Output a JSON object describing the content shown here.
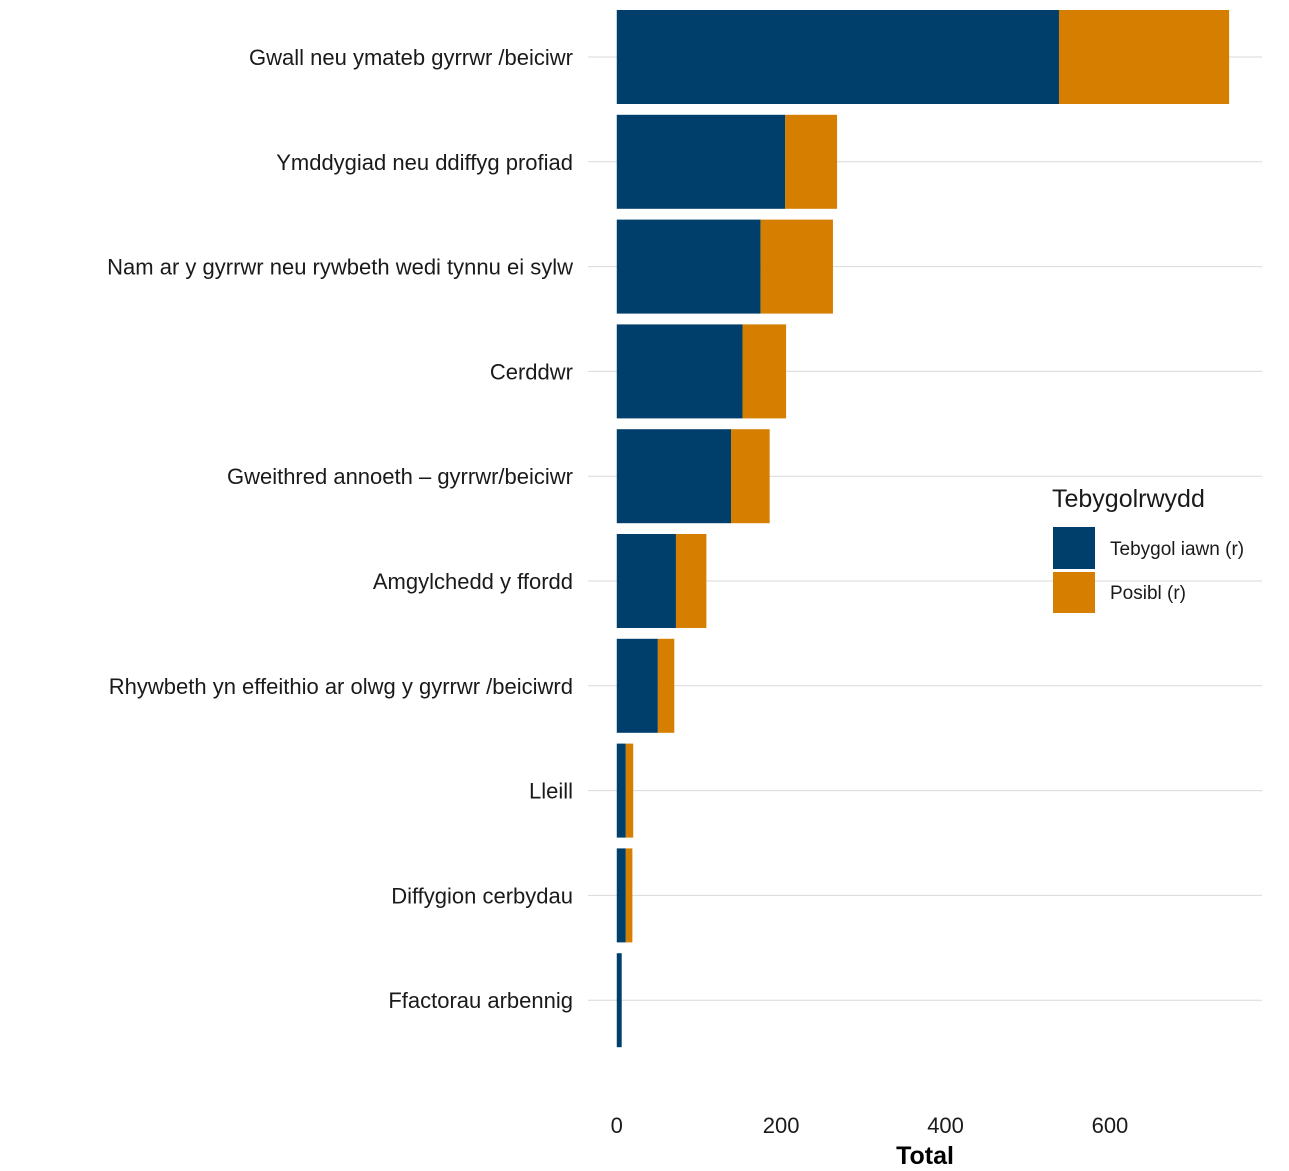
{
  "chart_data": {
    "type": "bar",
    "orientation": "horizontal",
    "stacked": true,
    "categories": [
      "Gwall neu ymateb gyrrwr  /beiciwr",
      "Ymddygiad neu ddiffyg profiad",
      "Nam ar y gyrrwr neu rywbeth wedi tynnu ei sylw",
      "Cerddwr",
      "Gweithred annoeth   – gyrrwr/beiciwr",
      "Amgylchedd y ffordd",
      "Rhywbeth yn effeithio ar olwg y gyrrwr   /beiciwrd",
      "Lleill",
      "Diffygion cerbydau",
      "Ffactorau arbennig"
    ],
    "series": [
      {
        "name": "Tebygol iawn (r)",
        "color": "#003f6b",
        "values": [
          538,
          205,
          175,
          153,
          139,
          72,
          50,
          11,
          11,
          6
        ]
      },
      {
        "name": "Posibl (r)",
        "color": "#d67e00",
        "values": [
          207,
          63,
          88,
          53,
          47,
          37,
          20,
          9,
          8,
          0
        ]
      }
    ],
    "xlabel": "Total",
    "ylabel": "",
    "xlim": [
      -35,
      785
    ],
    "xticks": [
      "0",
      "200",
      "400",
      "600"
    ],
    "xtick_values": [
      0,
      200,
      400,
      600
    ],
    "grid": "horizontal",
    "legend": {
      "title": "Tebygolrwydd",
      "placement": "right",
      "entries": [
        "Tebygol iawn (r)",
        "Posibl (r)"
      ]
    }
  }
}
